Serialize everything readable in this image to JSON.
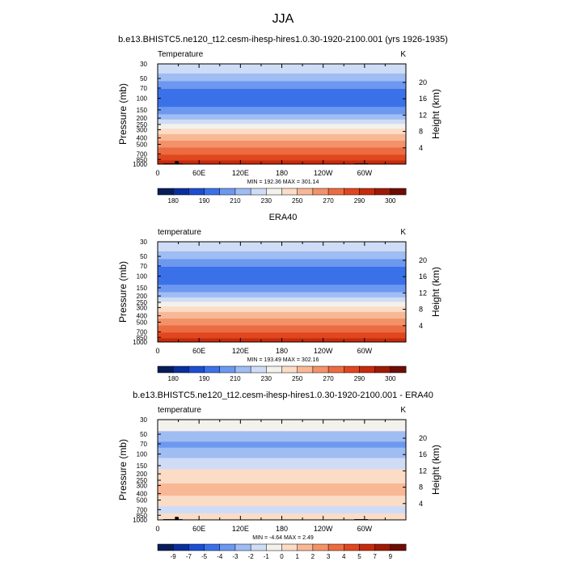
{
  "page": {
    "title": "JJA"
  },
  "colors": {
    "frame": "#000000",
    "background": "#ffffff",
    "topography": "#000000"
  },
  "chart_data": [
    {
      "type": "heatmap",
      "subtitle": "b.e13.BHISTC5.ne120_t12.cesm-ihesp-hires1.0.30-1920-2100.001 (yrs 1926-1935)",
      "left_label": "Temperature",
      "right_label": "K",
      "ylabel": "Pressure (mb)",
      "ylabel_right": "Height (km)",
      "xticks": [
        "0",
        "60E",
        "120E",
        "180",
        "120W",
        "60W"
      ],
      "yticks": [
        "30",
        "50",
        "70",
        "100",
        "150",
        "200",
        "250",
        "300",
        "400",
        "500",
        "700",
        "850",
        "1000"
      ],
      "height_ticks": [
        "4",
        "8",
        "12",
        "16",
        "20"
      ],
      "stats": "MIN = 192.36  MAX = 301.14",
      "colorbar_labels": [
        "180",
        "190",
        "210",
        "230",
        "250",
        "270",
        "290",
        "300"
      ],
      "colorbar_colors": [
        "#081d58",
        "#0a2f9c",
        "#1c4ed1",
        "#3b71e8",
        "#6d98f0",
        "#9fbdf3",
        "#cfdcf5",
        "#f3f1ec",
        "#fbdcc7",
        "#f8b896",
        "#f39269",
        "#ec6c41",
        "#e0471f",
        "#c52b0d",
        "#9e1a05",
        "#6e0d03"
      ],
      "bands": [
        {
          "p_top": 30,
          "p_bot": 42,
          "level": 6
        },
        {
          "p_top": 42,
          "p_bot": 55,
          "level": 5
        },
        {
          "p_top": 55,
          "p_bot": 72,
          "level": 4
        },
        {
          "p_top": 72,
          "p_bot": 135,
          "level": 3
        },
        {
          "p_top": 135,
          "p_bot": 175,
          "level": 4
        },
        {
          "p_top": 175,
          "p_bot": 210,
          "level": 5
        },
        {
          "p_top": 210,
          "p_bot": 245,
          "level": 6
        },
        {
          "p_top": 245,
          "p_bot": 290,
          "level": 7
        },
        {
          "p_top": 290,
          "p_bot": 350,
          "level": 8
        },
        {
          "p_top": 350,
          "p_bot": 440,
          "level": 9
        },
        {
          "p_top": 440,
          "p_bot": 560,
          "level": 10
        },
        {
          "p_top": 560,
          "p_bot": 720,
          "level": 11
        },
        {
          "p_top": 720,
          "p_bot": 880,
          "level": 12
        },
        {
          "p_top": 880,
          "p_bot": 1000,
          "level": 13
        }
      ],
      "topography": [
        {
          "lon_start": 8,
          "lon_end": 36,
          "p_top": 975
        },
        {
          "lon_start": 25,
          "lon_end": 30,
          "p_top": 900
        },
        {
          "lon_start": 285,
          "lon_end": 305,
          "p_top": 975
        }
      ]
    },
    {
      "type": "heatmap",
      "subtitle": "ERA40",
      "left_label": "temperature",
      "right_label": "K",
      "ylabel": "Pressure (mb)",
      "ylabel_right": "Height (km)",
      "xticks": [
        "0",
        "60E",
        "120E",
        "180",
        "120W",
        "60W"
      ],
      "yticks": [
        "30",
        "50",
        "70",
        "100",
        "150",
        "200",
        "250",
        "300",
        "400",
        "500",
        "700",
        "850",
        "1000"
      ],
      "height_ticks": [
        "4",
        "8",
        "12",
        "16",
        "20"
      ],
      "stats": "MIN = 193.49  MAX = 302.16",
      "colorbar_labels": [
        "180",
        "190",
        "210",
        "230",
        "250",
        "270",
        "290",
        "300"
      ],
      "colorbar_colors": [
        "#081d58",
        "#0a2f9c",
        "#1c4ed1",
        "#3b71e8",
        "#6d98f0",
        "#9fbdf3",
        "#cfdcf5",
        "#f3f1ec",
        "#fbdcc7",
        "#f8b896",
        "#f39269",
        "#ec6c41",
        "#e0471f",
        "#c52b0d",
        "#9e1a05",
        "#6e0d03"
      ],
      "bands": [
        {
          "p_top": 30,
          "p_bot": 42,
          "level": 6
        },
        {
          "p_top": 42,
          "p_bot": 55,
          "level": 5
        },
        {
          "p_top": 55,
          "p_bot": 72,
          "level": 4
        },
        {
          "p_top": 72,
          "p_bot": 135,
          "level": 3
        },
        {
          "p_top": 135,
          "p_bot": 175,
          "level": 4
        },
        {
          "p_top": 175,
          "p_bot": 210,
          "level": 5
        },
        {
          "p_top": 210,
          "p_bot": 245,
          "level": 6
        },
        {
          "p_top": 245,
          "p_bot": 290,
          "level": 7
        },
        {
          "p_top": 290,
          "p_bot": 350,
          "level": 8
        },
        {
          "p_top": 350,
          "p_bot": 440,
          "level": 9
        },
        {
          "p_top": 440,
          "p_bot": 560,
          "level": 10
        },
        {
          "p_top": 560,
          "p_bot": 720,
          "level": 11
        },
        {
          "p_top": 720,
          "p_bot": 880,
          "level": 12
        },
        {
          "p_top": 880,
          "p_bot": 1000,
          "level": 13
        }
      ],
      "topography": []
    },
    {
      "type": "heatmap",
      "subtitle": "b.e13.BHISTC5.ne120_t12.cesm-ihesp-hires1.0.30-1920-2100.001 - ERA40",
      "left_label": "temperature",
      "right_label": "K",
      "ylabel": "Pressure (mb)",
      "ylabel_right": "Height (km)",
      "xticks": [
        "0",
        "60E",
        "120E",
        "180",
        "120W",
        "60W"
      ],
      "yticks": [
        "30",
        "50",
        "70",
        "100",
        "150",
        "200",
        "250",
        "300",
        "400",
        "500",
        "700",
        "850",
        "1000"
      ],
      "height_ticks": [
        "4",
        "8",
        "12",
        "16",
        "20"
      ],
      "stats": "MIN = -4.64  MAX =  2.49",
      "colorbar_labels": [
        "-9",
        "-7",
        "-5",
        "-4",
        "-3",
        "-2",
        "-1",
        "0",
        "1",
        "2",
        "3",
        "4",
        "5",
        "7",
        "9"
      ],
      "colorbar_colors": [
        "#081d58",
        "#0a2f9c",
        "#1c4ed1",
        "#3b71e8",
        "#6d98f0",
        "#9fbdf3",
        "#cfdcf5",
        "#f3f1ec",
        "#fbdcc7",
        "#f8b896",
        "#f39269",
        "#ec6c41",
        "#e0471f",
        "#c52b0d",
        "#9e1a05",
        "#6e0d03"
      ],
      "bands": [
        {
          "p_top": 30,
          "p_bot": 45,
          "level": 7
        },
        {
          "p_top": 45,
          "p_bot": 65,
          "level": 5
        },
        {
          "p_top": 65,
          "p_bot": 80,
          "level": 4
        },
        {
          "p_top": 80,
          "p_bot": 115,
          "level": 5
        },
        {
          "p_top": 115,
          "p_bot": 170,
          "level": 6
        },
        {
          "p_top": 170,
          "p_bot": 280,
          "level": 8
        },
        {
          "p_top": 280,
          "p_bot": 430,
          "level": 9
        },
        {
          "p_top": 430,
          "p_bot": 620,
          "level": 8
        },
        {
          "p_top": 620,
          "p_bot": 800,
          "level": 6
        },
        {
          "p_top": 800,
          "p_bot": 1000,
          "level": 8
        }
      ],
      "topography": [
        {
          "lon_start": 8,
          "lon_end": 36,
          "p_top": 975
        },
        {
          "lon_start": 25,
          "lon_end": 30,
          "p_top": 900
        },
        {
          "lon_start": 285,
          "lon_end": 305,
          "p_top": 975
        }
      ]
    }
  ]
}
